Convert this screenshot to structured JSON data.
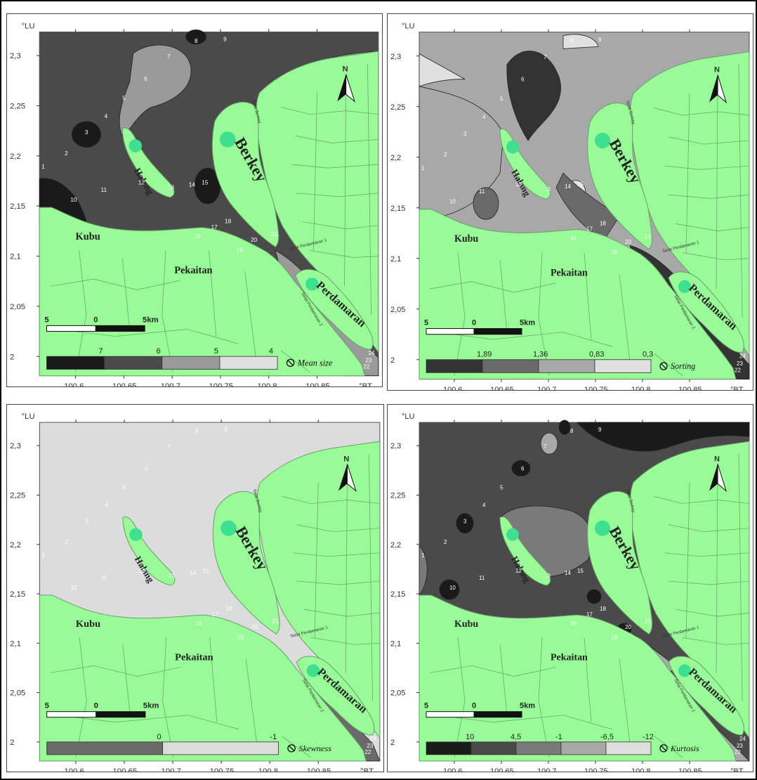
{
  "axis": {
    "lat_unit": "°LU",
    "lon_unit": "°BT",
    "lat_ticks": [
      "2,3",
      "2,25",
      "2,2",
      "2,15",
      "2,1",
      "2,05",
      "2"
    ],
    "lon_ticks": [
      "100,6",
      "100,65",
      "100,7",
      "100,75",
      "100,8",
      "100,85"
    ]
  },
  "places": {
    "halang": "Halang",
    "berkey": "Berkey",
    "kubu": "Kubu",
    "pekaitan": "Pekaitan",
    "perdamaran": "Perdamaran",
    "selat_berkey": "Selat Berkey",
    "selat_perdamaran_1": "Selat Perdamaran 1",
    "selat_perdamaran_2": "Selat Perdamaran 2"
  },
  "scale_bar": {
    "left": "5",
    "mid": "0",
    "right": "5km"
  },
  "north_label": "N",
  "stations": [
    "1",
    "2",
    "3",
    "4",
    "5",
    "6",
    "7",
    "8",
    "9",
    "10",
    "11",
    "12",
    "13",
    "14",
    "15",
    "16",
    "17",
    "18",
    "19",
    "20",
    "21",
    "22",
    "23",
    "24"
  ],
  "panels": [
    {
      "id": "mean-size",
      "title": "Mean size",
      "legend_values": [
        "7",
        "6",
        "5",
        "4"
      ],
      "legend_colors": [
        "#1a1a1a",
        "#4a4a4a",
        "#9a9a9a",
        "#e0e0e0"
      ],
      "base_color": "#4a4a4a"
    },
    {
      "id": "sorting",
      "title": "Sorting",
      "legend_values": [
        "1,89",
        "1,36",
        "0,83",
        "0,3"
      ],
      "legend_colors": [
        "#333333",
        "#6a6a6a",
        "#a8a8a8",
        "#e0e0e0"
      ],
      "base_color": "#a8a8a8"
    },
    {
      "id": "skewness",
      "title": "Skewness",
      "legend_values": [
        "0",
        "-1"
      ],
      "legend_colors": [
        "#6a6a6a",
        "#dcdcdc"
      ],
      "base_color": "#dcdcdc"
    },
    {
      "id": "kurtosis",
      "title": "Kurtosis",
      "legend_values": [
        "10",
        "4,5",
        "-1",
        "-6,5",
        "-12"
      ],
      "legend_colors": [
        "#1a1a1a",
        "#4a4a4a",
        "#7a7a7a",
        "#a8a8a8",
        "#dedede"
      ],
      "base_color": "#4a4a4a"
    }
  ],
  "colors": {
    "land": "#98fb98",
    "land_line": "#6a9e6a",
    "marker": "#3ee08f"
  }
}
